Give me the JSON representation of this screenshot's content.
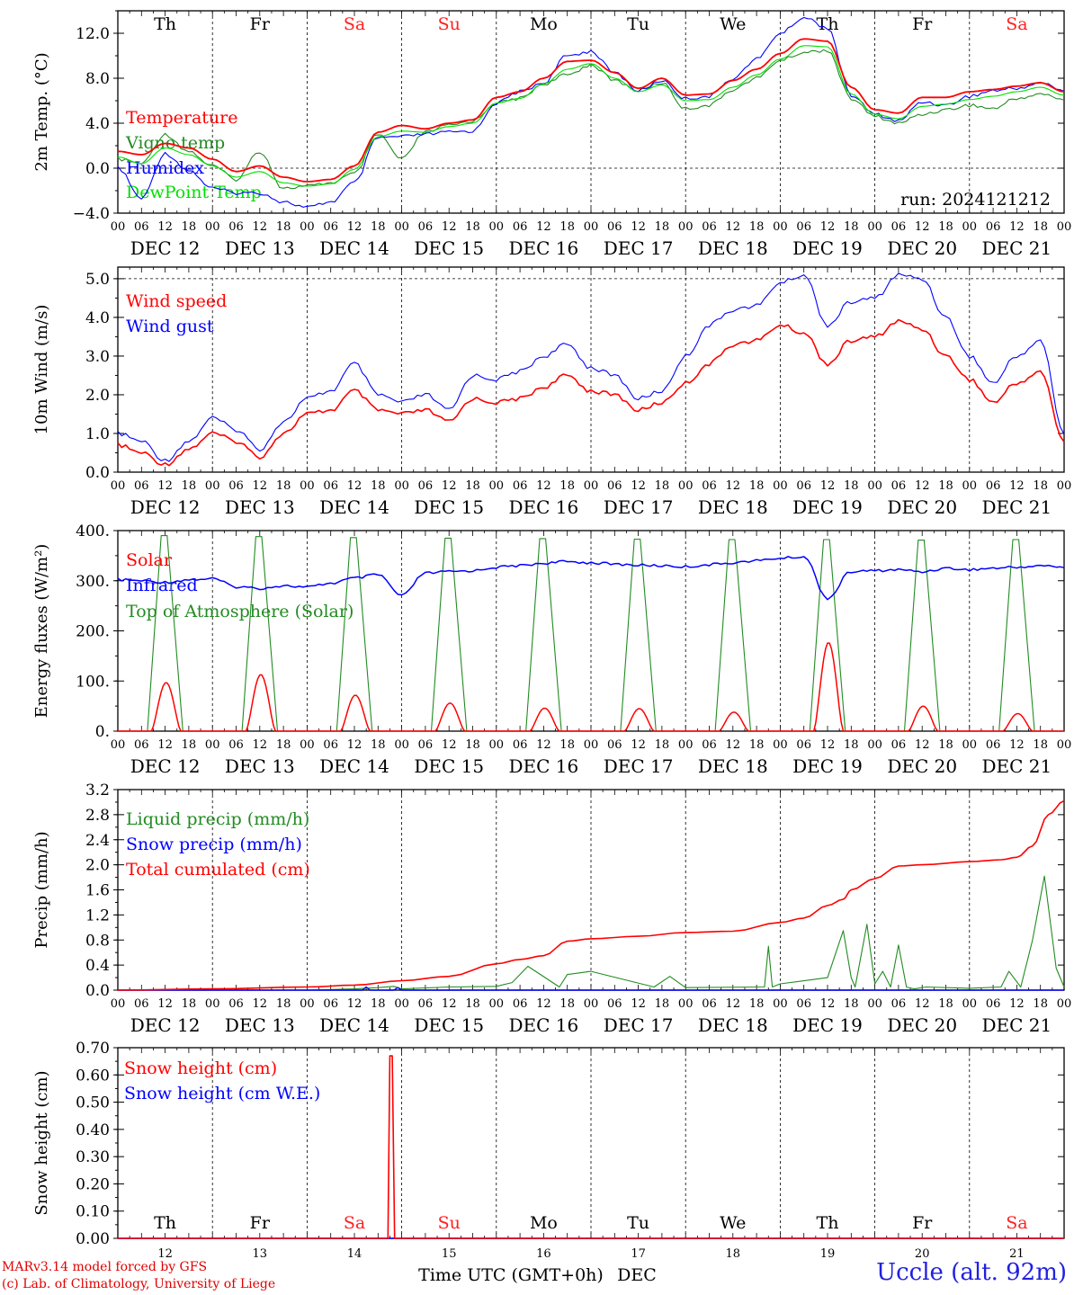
{
  "run_label": "run: 2024121212",
  "credits": [
    "MARv3.14 model forced by GFS",
    "(c) Lab. of Climatology, University of Liege"
  ],
  "station": "Uccle (alt. 92m)",
  "xaxis_title": "Time UTC (GMT+0h)",
  "xaxis_month": "DEC",
  "weekdays": [
    "Th",
    "Fr",
    "Sa",
    "Su",
    "Mo",
    "Tu",
    "We",
    "Th",
    "Fr",
    "Sa"
  ],
  "weekend_flags": [
    false,
    false,
    true,
    true,
    false,
    false,
    false,
    false,
    false,
    true
  ],
  "date_labels": [
    "DEC 12",
    "DEC 13",
    "DEC 14",
    "DEC 15",
    "DEC 16",
    "DEC 17",
    "DEC 18",
    "DEC 19",
    "DEC 20",
    "DEC 21"
  ],
  "day_numbers": [
    "12",
    "13",
    "14",
    "15",
    "16",
    "17",
    "18",
    "19",
    "20",
    "21"
  ],
  "hour_labels": [
    "00",
    "06",
    "12",
    "18"
  ],
  "colors": {
    "red": "#ff0000",
    "blue": "#0000ff",
    "green": "#228b22",
    "lightgreen": "#00e000",
    "weekend": "#ff2020"
  },
  "chart_data": [
    {
      "type": "line",
      "ylabel": "2m Temp. (°C)",
      "ylim": [
        -4,
        14
      ],
      "yticks": [
        -4.0,
        0.0,
        4.0,
        8.0,
        12.0
      ],
      "ytick_labels": [
        "−4.0",
        "0.0",
        "4.0",
        "8.0",
        "12.0"
      ],
      "reference_line": 0,
      "x_unit": "hours since 2024-12-12 00 UTC",
      "x": [
        0,
        6,
        12,
        18,
        24,
        30,
        36,
        42,
        48,
        54,
        60,
        66,
        72,
        78,
        84,
        90,
        96,
        102,
        108,
        114,
        120,
        126,
        132,
        138,
        144,
        150,
        156,
        162,
        168,
        174,
        180,
        186,
        192,
        198,
        204,
        210,
        216,
        222,
        228,
        234,
        240
      ],
      "series": [
        {
          "name": "Temperature",
          "color": "#ff0000",
          "values": [
            1.5,
            1.2,
            2.2,
            1.8,
            0.8,
            -0.3,
            0.2,
            -0.8,
            -1.2,
            -1.0,
            0.2,
            3.2,
            3.8,
            3.5,
            4.0,
            4.3,
            6.3,
            6.8,
            8.0,
            9.5,
            9.6,
            8.5,
            7.1,
            8.0,
            6.5,
            6.6,
            7.8,
            8.8,
            10.2,
            11.5,
            11.3,
            7.2,
            5.2,
            4.9,
            6.3,
            6.3,
            6.8,
            7.0,
            7.3,
            7.6,
            6.8
          ]
        },
        {
          "name": "Vigne temp",
          "color": "#228b22",
          "values": [
            0.8,
            0.4,
            3.0,
            1.5,
            0.2,
            -1.0,
            1.5,
            -1.8,
            -1.6,
            -1.3,
            -0.5,
            3.0,
            0.8,
            3.2,
            3.8,
            4.2,
            5.8,
            6.2,
            7.5,
            8.3,
            9.2,
            7.8,
            6.9,
            7.6,
            5.3,
            5.6,
            7.0,
            8.0,
            9.6,
            10.3,
            10.5,
            6.2,
            4.6,
            4.0,
            4.8,
            5.2,
            5.6,
            5.3,
            6.2,
            6.6,
            6.1
          ]
        },
        {
          "name": "Humidex",
          "color": "#0000ff",
          "values": [
            0.0,
            -2.7,
            1.3,
            -0.2,
            -1.8,
            -2.2,
            -2.2,
            -3.0,
            -3.5,
            -3.0,
            -1.3,
            2.7,
            2.8,
            3.0,
            3.2,
            3.3,
            5.8,
            6.8,
            7.6,
            10.0,
            10.4,
            8.5,
            6.9,
            7.8,
            6.2,
            6.4,
            8.0,
            9.7,
            12.0,
            13.4,
            12.5,
            6.5,
            4.8,
            4.2,
            5.9,
            5.6,
            6.4,
            6.9,
            7.1,
            7.6,
            6.9
          ]
        },
        {
          "name": "DewPoint Temp",
          "color": "#00e000",
          "values": [
            1.0,
            0.4,
            1.8,
            1.2,
            0.2,
            -0.8,
            -0.3,
            -1.3,
            -1.6,
            -1.4,
            -0.1,
            2.8,
            3.3,
            3.2,
            3.7,
            4.0,
            5.8,
            6.2,
            7.5,
            8.8,
            9.3,
            8.0,
            6.8,
            7.4,
            6.0,
            6.1,
            7.2,
            8.3,
            9.7,
            10.9,
            10.8,
            6.6,
            4.8,
            4.4,
            5.5,
            5.7,
            6.1,
            6.4,
            6.8,
            7.2,
            6.5
          ]
        }
      ]
    },
    {
      "type": "line",
      "ylabel": "10m Wind (m/s)",
      "ylim": [
        0,
        5.3
      ],
      "yticks": [
        0.0,
        1.0,
        2.0,
        3.0,
        4.0,
        5.0
      ],
      "ytick_labels": [
        "0.0",
        "1.0",
        "2.0",
        "3.0",
        "4.0",
        "5.0"
      ],
      "reference_line": 5.0,
      "x_unit": "hours since 2024-12-12 00 UTC",
      "x": [
        0,
        6,
        12,
        18,
        24,
        30,
        36,
        42,
        48,
        54,
        60,
        66,
        72,
        78,
        84,
        90,
        96,
        102,
        108,
        114,
        120,
        126,
        132,
        138,
        144,
        150,
        156,
        162,
        168,
        174,
        180,
        186,
        192,
        198,
        204,
        210,
        216,
        222,
        228,
        234,
        240
      ],
      "series": [
        {
          "name": "Wind speed",
          "color": "#ff0000",
          "values": [
            0.7,
            0.5,
            0.2,
            0.6,
            1.0,
            0.8,
            0.4,
            1.0,
            1.5,
            1.6,
            2.1,
            1.6,
            1.5,
            1.6,
            1.3,
            1.9,
            1.8,
            1.9,
            2.2,
            2.5,
            2.1,
            2.0,
            1.6,
            1.8,
            2.3,
            2.8,
            3.3,
            3.4,
            3.8,
            3.6,
            2.8,
            3.4,
            3.5,
            3.9,
            3.7,
            3.0,
            2.4,
            1.8,
            2.3,
            2.6,
            0.8
          ]
        },
        {
          "name": "Wind gust",
          "color": "#0000ff",
          "values": [
            1.0,
            0.8,
            0.3,
            0.8,
            1.4,
            1.1,
            0.6,
            1.3,
            1.9,
            2.1,
            2.8,
            2.0,
            1.8,
            2.0,
            1.6,
            2.5,
            2.4,
            2.6,
            3.0,
            3.3,
            2.7,
            2.5,
            1.9,
            2.1,
            3.0,
            3.8,
            4.2,
            4.3,
            4.9,
            5.1,
            3.8,
            4.4,
            4.5,
            5.1,
            5.0,
            4.0,
            3.0,
            2.3,
            3.0,
            3.4,
            1.0
          ]
        }
      ]
    },
    {
      "type": "line",
      "ylabel": "Energy fluxes (W/m²)",
      "ylim": [
        0,
        400
      ],
      "yticks": [
        0,
        100,
        200,
        300,
        400
      ],
      "ytick_labels": [
        "0.",
        "100.",
        "200.",
        "300.",
        "400."
      ],
      "x_unit": "hours since 2024-12-12 00 UTC",
      "series": [
        {
          "name": "Solar",
          "color": "#ff0000",
          "daily_peaks": [
            97,
            113,
            72,
            56,
            46,
            45,
            38,
            177,
            50,
            35
          ]
        },
        {
          "name": "Infrared",
          "color": "#0000ff",
          "x": [
            0,
            6,
            12,
            18,
            24,
            30,
            36,
            42,
            48,
            54,
            60,
            66,
            72,
            78,
            84,
            90,
            96,
            102,
            108,
            114,
            120,
            126,
            132,
            138,
            144,
            150,
            156,
            162,
            168,
            174,
            180,
            186,
            192,
            198,
            204,
            210,
            216,
            222,
            228,
            234,
            240
          ],
          "values": [
            302,
            300,
            297,
            302,
            304,
            288,
            285,
            290,
            287,
            295,
            305,
            312,
            270,
            315,
            318,
            320,
            327,
            330,
            335,
            338,
            336,
            333,
            331,
            330,
            328,
            332,
            336,
            340,
            345,
            348,
            265,
            318,
            320,
            322,
            318,
            325,
            322,
            325,
            327,
            330,
            327
          ]
        },
        {
          "name": "Top of Atmosphere (Solar)",
          "color": "#228b22",
          "daily_peaks": [
            390,
            388,
            386,
            385,
            384,
            383,
            382,
            382,
            381,
            382
          ]
        }
      ]
    },
    {
      "type": "line",
      "ylabel": "Precip (mm/h)",
      "ylim": [
        0,
        3.2
      ],
      "yticks": [
        0.0,
        0.4,
        0.8,
        1.2,
        1.6,
        2.0,
        2.4,
        2.8,
        3.2
      ],
      "ytick_labels": [
        "0.0",
        "0.4",
        "0.8",
        "1.2",
        "1.6",
        "2.0",
        "2.4",
        "2.8",
        "3.2"
      ],
      "x_unit": "hours since 2024-12-12 00 UTC",
      "series": [
        {
          "name": "Liquid precip (mm/h)",
          "color": "#228b22",
          "x": [
            0,
            24,
            48,
            60,
            66,
            70,
            72,
            84,
            96,
            100,
            104,
            112,
            114,
            120,
            136,
            140,
            144,
            164,
            165,
            166,
            168,
            180,
            184,
            186,
            187,
            190,
            192,
            194,
            196,
            198,
            200,
            202,
            205,
            216,
            224,
            226,
            229,
            232,
            235,
            237,
            238,
            240
          ],
          "values": [
            0,
            0,
            0,
            0.02,
            0.04,
            0.06,
            0.02,
            0.05,
            0.06,
            0.12,
            0.38,
            0.05,
            0.25,
            0.3,
            0.05,
            0.22,
            0.04,
            0.05,
            0.7,
            0.05,
            0.1,
            0.2,
            0.95,
            0.2,
            0.05,
            1.05,
            0.1,
            0.3,
            0.05,
            0.72,
            0.05,
            0.02,
            0.05,
            0.03,
            0.05,
            0.3,
            0.05,
            0.8,
            1.82,
            0.85,
            0.35,
            0.05
          ]
        },
        {
          "name": "Snow precip (mm/h)",
          "color": "#0000ff",
          "x": [
            0,
            62,
            63,
            64,
            70,
            71,
            72,
            240
          ],
          "values": [
            0,
            0,
            0.05,
            0,
            0,
            0.04,
            0,
            0
          ]
        },
        {
          "name": "Total cumulated (cm)",
          "color": "#ff0000",
          "x": [
            0,
            24,
            48,
            60,
            72,
            84,
            96,
            102,
            108,
            114,
            120,
            132,
            144,
            156,
            168,
            174,
            180,
            184,
            186,
            192,
            198,
            204,
            216,
            224,
            228,
            232,
            236,
            240
          ],
          "values": [
            0,
            0.02,
            0.05,
            0.08,
            0.15,
            0.22,
            0.42,
            0.49,
            0.55,
            0.78,
            0.82,
            0.86,
            0.92,
            0.94,
            1.08,
            1.15,
            1.35,
            1.45,
            1.6,
            1.78,
            1.98,
            2.0,
            2.05,
            2.08,
            2.12,
            2.3,
            2.8,
            3.02
          ]
        }
      ]
    },
    {
      "type": "line",
      "ylabel": "Snow height (cm)",
      "ylim": [
        0,
        0.7
      ],
      "yticks": [
        0.0,
        0.1,
        0.2,
        0.3,
        0.4,
        0.5,
        0.6,
        0.7
      ],
      "ytick_labels": [
        "0.00",
        "0.10",
        "0.20",
        "0.30",
        "0.40",
        "0.50",
        "0.60",
        "0.70"
      ],
      "x_unit": "hours since 2024-12-12 00 UTC",
      "series": [
        {
          "name": "Snow height (cm)",
          "color": "#ff0000",
          "x": [
            0,
            68.5,
            69,
            69.6,
            70.2,
            240
          ],
          "values": [
            0,
            0,
            0.67,
            0.67,
            0,
            0
          ]
        },
        {
          "name": "Snow height (cm W.E.)",
          "color": "#0000ff",
          "x": [
            0,
            240
          ],
          "values": [
            0,
            0
          ]
        }
      ]
    }
  ]
}
